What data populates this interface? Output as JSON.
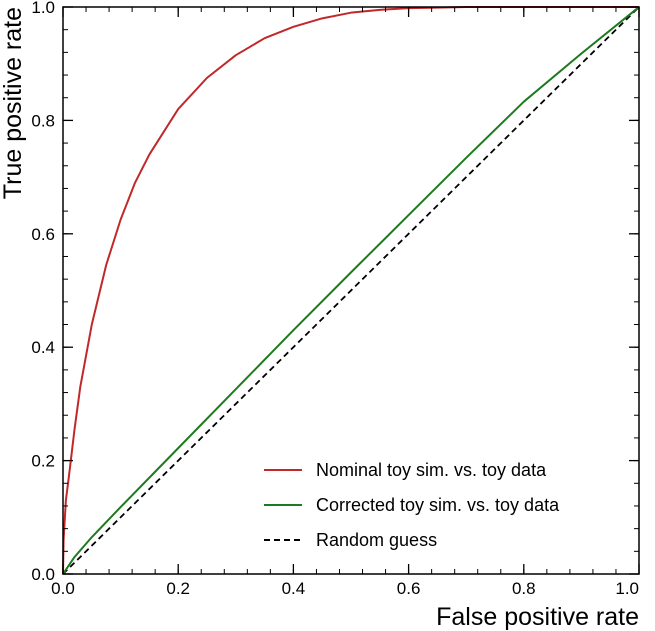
{
  "chart_data": {
    "type": "line",
    "xlabel": "False positive rate",
    "ylabel": "True positive rate",
    "xlim": [
      0.0,
      1.0
    ],
    "ylim": [
      0.0,
      1.0
    ],
    "xticks": [
      "0.0",
      "0.2",
      "0.4",
      "0.6",
      "0.8",
      "1.0"
    ],
    "yticks": [
      "0.0",
      "0.2",
      "0.4",
      "0.6",
      "0.8",
      "1.0"
    ],
    "grid": false,
    "legend_position": "bottom-right",
    "series": [
      {
        "name": "Nominal toy sim. vs. toy data",
        "color": "#c0282a",
        "style": "solid",
        "x": [
          0.0,
          0.001,
          0.005,
          0.01,
          0.02,
          0.03,
          0.05,
          0.075,
          0.1,
          0.125,
          0.15,
          0.2,
          0.25,
          0.3,
          0.35,
          0.4,
          0.45,
          0.5,
          0.55,
          0.6,
          0.65,
          0.7,
          0.8,
          0.9,
          1.0
        ],
        "y": [
          0.0,
          0.06,
          0.13,
          0.17,
          0.255,
          0.33,
          0.44,
          0.545,
          0.625,
          0.69,
          0.74,
          0.82,
          0.875,
          0.915,
          0.945,
          0.965,
          0.98,
          0.99,
          0.995,
          0.998,
          0.999,
          1.0,
          1.0,
          1.0,
          1.0
        ]
      },
      {
        "name": "Corrected toy sim. vs. toy data",
        "color": "#1e7a1e",
        "style": "solid",
        "x": [
          0.0,
          0.02,
          0.05,
          0.1,
          0.2,
          0.3,
          0.4,
          0.5,
          0.6,
          0.7,
          0.8,
          0.9,
          1.0
        ],
        "y": [
          0.0,
          0.03,
          0.065,
          0.118,
          0.222,
          0.326,
          0.43,
          0.532,
          0.633,
          0.734,
          0.833,
          0.918,
          1.0
        ]
      },
      {
        "name": "Random guess",
        "color": "#000000",
        "style": "dashed",
        "x": [
          0.0,
          1.0
        ],
        "y": [
          0.0,
          1.0
        ]
      }
    ]
  }
}
